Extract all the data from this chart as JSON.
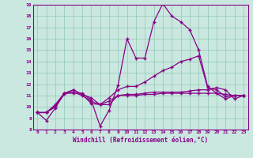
{
  "xlabel": "Windchill (Refroidissement éolien,°C)",
  "background_color": "#cae8e0",
  "line_color": "#880088",
  "grid_color": "#99ccbb",
  "xlim": [
    -0.5,
    23.5
  ],
  "ylim": [
    8,
    19
  ],
  "xticks": [
    0,
    1,
    2,
    3,
    4,
    5,
    6,
    7,
    8,
    9,
    10,
    11,
    12,
    13,
    14,
    15,
    16,
    17,
    18,
    19,
    20,
    21,
    22,
    23
  ],
  "yticks": [
    8,
    9,
    10,
    11,
    12,
    13,
    14,
    15,
    16,
    17,
    18,
    19
  ],
  "series": [
    [
      9.5,
      8.8,
      9.9,
      11.2,
      11.2,
      11.2,
      10.6,
      8.3,
      9.7,
      11.9,
      16.0,
      14.3,
      14.3,
      17.5,
      19.1,
      18.0,
      17.5,
      16.8,
      15.0,
      11.8,
      11.2,
      10.7,
      11.0,
      11.0
    ],
    [
      9.5,
      9.5,
      10.0,
      11.1,
      11.5,
      11.1,
      10.3,
      10.2,
      10.2,
      11.0,
      11.0,
      11.0,
      11.1,
      11.1,
      11.2,
      11.2,
      11.2,
      11.2,
      11.2,
      11.2,
      11.2,
      11.1,
      11.0,
      11.0
    ],
    [
      9.5,
      9.5,
      10.2,
      11.2,
      11.5,
      11.1,
      10.8,
      10.2,
      10.8,
      11.5,
      11.8,
      11.8,
      12.2,
      12.7,
      13.2,
      13.5,
      14.0,
      14.2,
      14.5,
      11.7,
      11.5,
      10.9,
      11.0,
      11.0
    ],
    [
      9.5,
      9.5,
      10.1,
      11.2,
      11.3,
      11.0,
      10.5,
      10.2,
      10.5,
      11.0,
      11.1,
      11.1,
      11.2,
      11.3,
      11.3,
      11.3,
      11.3,
      11.4,
      11.5,
      11.5,
      11.7,
      11.5,
      10.7,
      11.0
    ]
  ]
}
